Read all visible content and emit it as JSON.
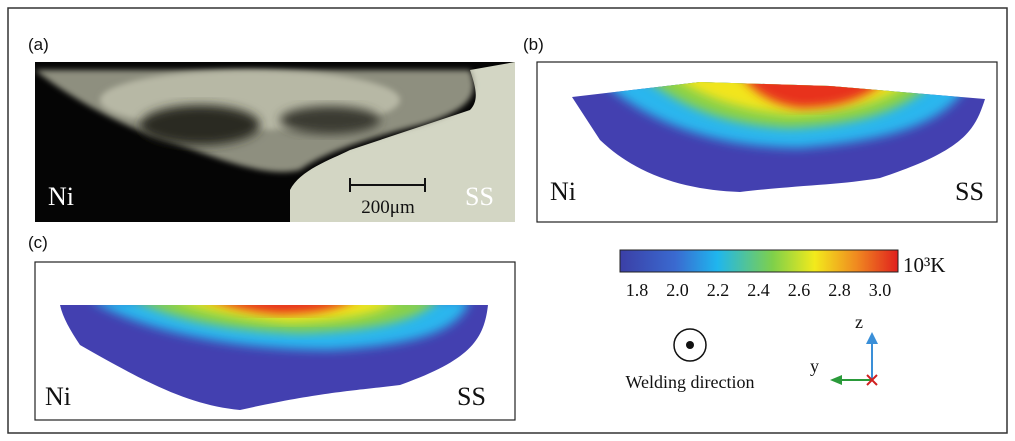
{
  "panels": [
    {
      "label": "(a)",
      "left": "Ni",
      "right": "SS",
      "scale_bar": "200μm"
    },
    {
      "label": "(b)",
      "left": "Ni",
      "right": "SS"
    },
    {
      "label": "(c)",
      "left": "Ni",
      "right": "SS"
    }
  ],
  "colorbar": {
    "ticks": [
      "1.8",
      "2.0",
      "2.2",
      "2.4",
      "2.6",
      "2.8",
      "3.0"
    ],
    "unit": "10³K"
  },
  "legend": {
    "welding_direction": "Welding direction",
    "z": "z",
    "y": "y"
  }
}
